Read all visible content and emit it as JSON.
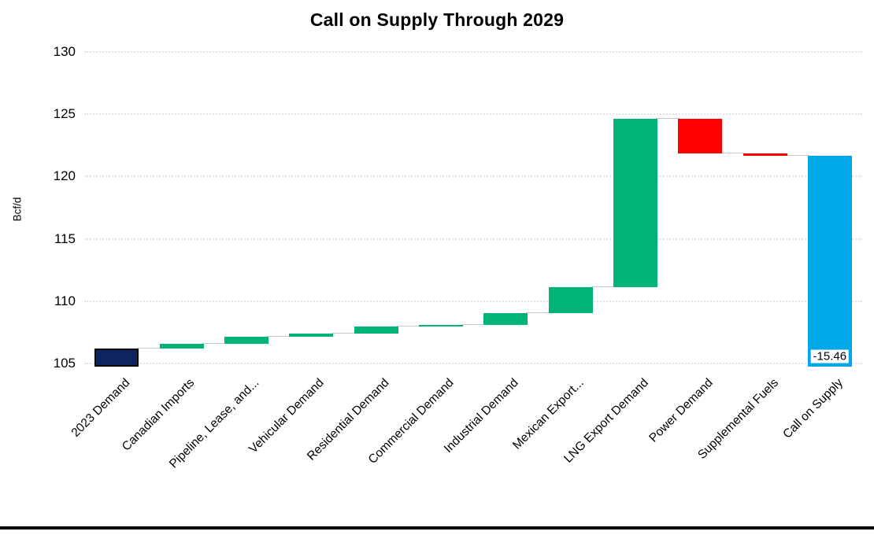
{
  "chart_data": {
    "type": "bar",
    "subtype": "waterfall",
    "title": "Call on Supply Through 2029",
    "ylabel": "Bcf/d",
    "ylim": [
      104.75,
      130
    ],
    "yticks": [
      105,
      110,
      115,
      120,
      125,
      130
    ],
    "grid": {
      "horizontal": true,
      "style": "dotted"
    },
    "legend": "none",
    "colors": {
      "start": "#0e2360",
      "start_edge": "#000000",
      "increase": "#00b377",
      "decrease": "#fe0000",
      "total": "#00a8e8",
      "connector": "#c9c9c9",
      "grid": "#e4e4e4"
    },
    "bars": [
      {
        "label": "2023 Demand",
        "kind": "start",
        "base": 104.75,
        "top": 106.2,
        "change": null
      },
      {
        "label": "Canadian Imports",
        "kind": "increase",
        "base": 106.2,
        "top": 106.55,
        "change": 0.35
      },
      {
        "label": "Pipeline, Lease, and...",
        "kind": "increase",
        "base": 106.55,
        "top": 107.15,
        "change": 0.6
      },
      {
        "label": "Vehicular Demand",
        "kind": "increase",
        "base": 107.15,
        "top": 107.4,
        "change": 0.25
      },
      {
        "label": "Residential Demand",
        "kind": "increase",
        "base": 107.4,
        "top": 108.0,
        "change": 0.6
      },
      {
        "label": "Commercial Demand",
        "kind": "increase",
        "base": 108.0,
        "top": 108.1,
        "change": 0.1
      },
      {
        "label": "Industrial Demand",
        "kind": "increase",
        "base": 108.1,
        "top": 109.03,
        "change": 0.93
      },
      {
        "label": "Mexican Export...",
        "kind": "increase",
        "base": 109.03,
        "top": 111.1,
        "change": 2.07
      },
      {
        "label": "LNG Export Demand",
        "kind": "increase",
        "base": 111.1,
        "top": 124.66,
        "change": 13.56
      },
      {
        "label": "Power Demand",
        "kind": "decrease",
        "base": 121.86,
        "top": 124.66,
        "change": -2.8
      },
      {
        "label": "Supplemental Fuels",
        "kind": "decrease",
        "base": 121.66,
        "top": 121.86,
        "change": -0.2
      },
      {
        "label": "Call on Supply",
        "kind": "total",
        "base": 104.75,
        "top": 121.66,
        "change": -15.46
      }
    ],
    "annotation": {
      "text": "-15.46",
      "bar_label": "Call on Supply",
      "bar_index": 11,
      "position_value": 105.6
    }
  }
}
